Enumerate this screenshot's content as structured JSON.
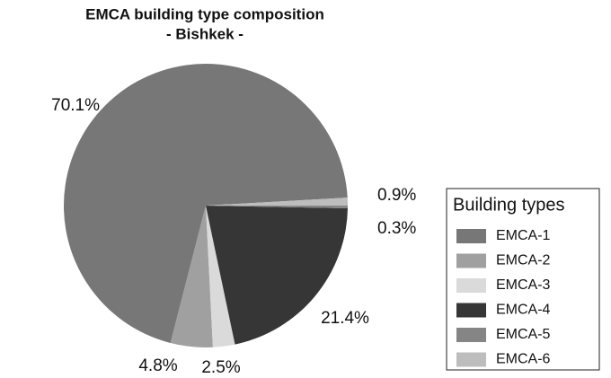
{
  "chart_data": {
    "type": "pie",
    "title": "EMCA building type composition",
    "subtitle": "- Bishkek -",
    "legend_title": "Building types",
    "legend": "right",
    "categories": [
      "EMCA-1",
      "EMCA-2",
      "EMCA-3",
      "EMCA-4",
      "EMCA-5",
      "EMCA-6"
    ],
    "values": [
      70.1,
      4.8,
      2.5,
      21.4,
      0.3,
      0.9
    ],
    "value_labels": [
      "70.1%",
      "4.8%",
      "2.5%",
      "21.4%",
      "0.3%",
      "0.9%"
    ],
    "colors": [
      "#777777",
      "#a0a0a0",
      "#dadada",
      "#363636",
      "#858585",
      "#bdbdbd"
    ]
  }
}
